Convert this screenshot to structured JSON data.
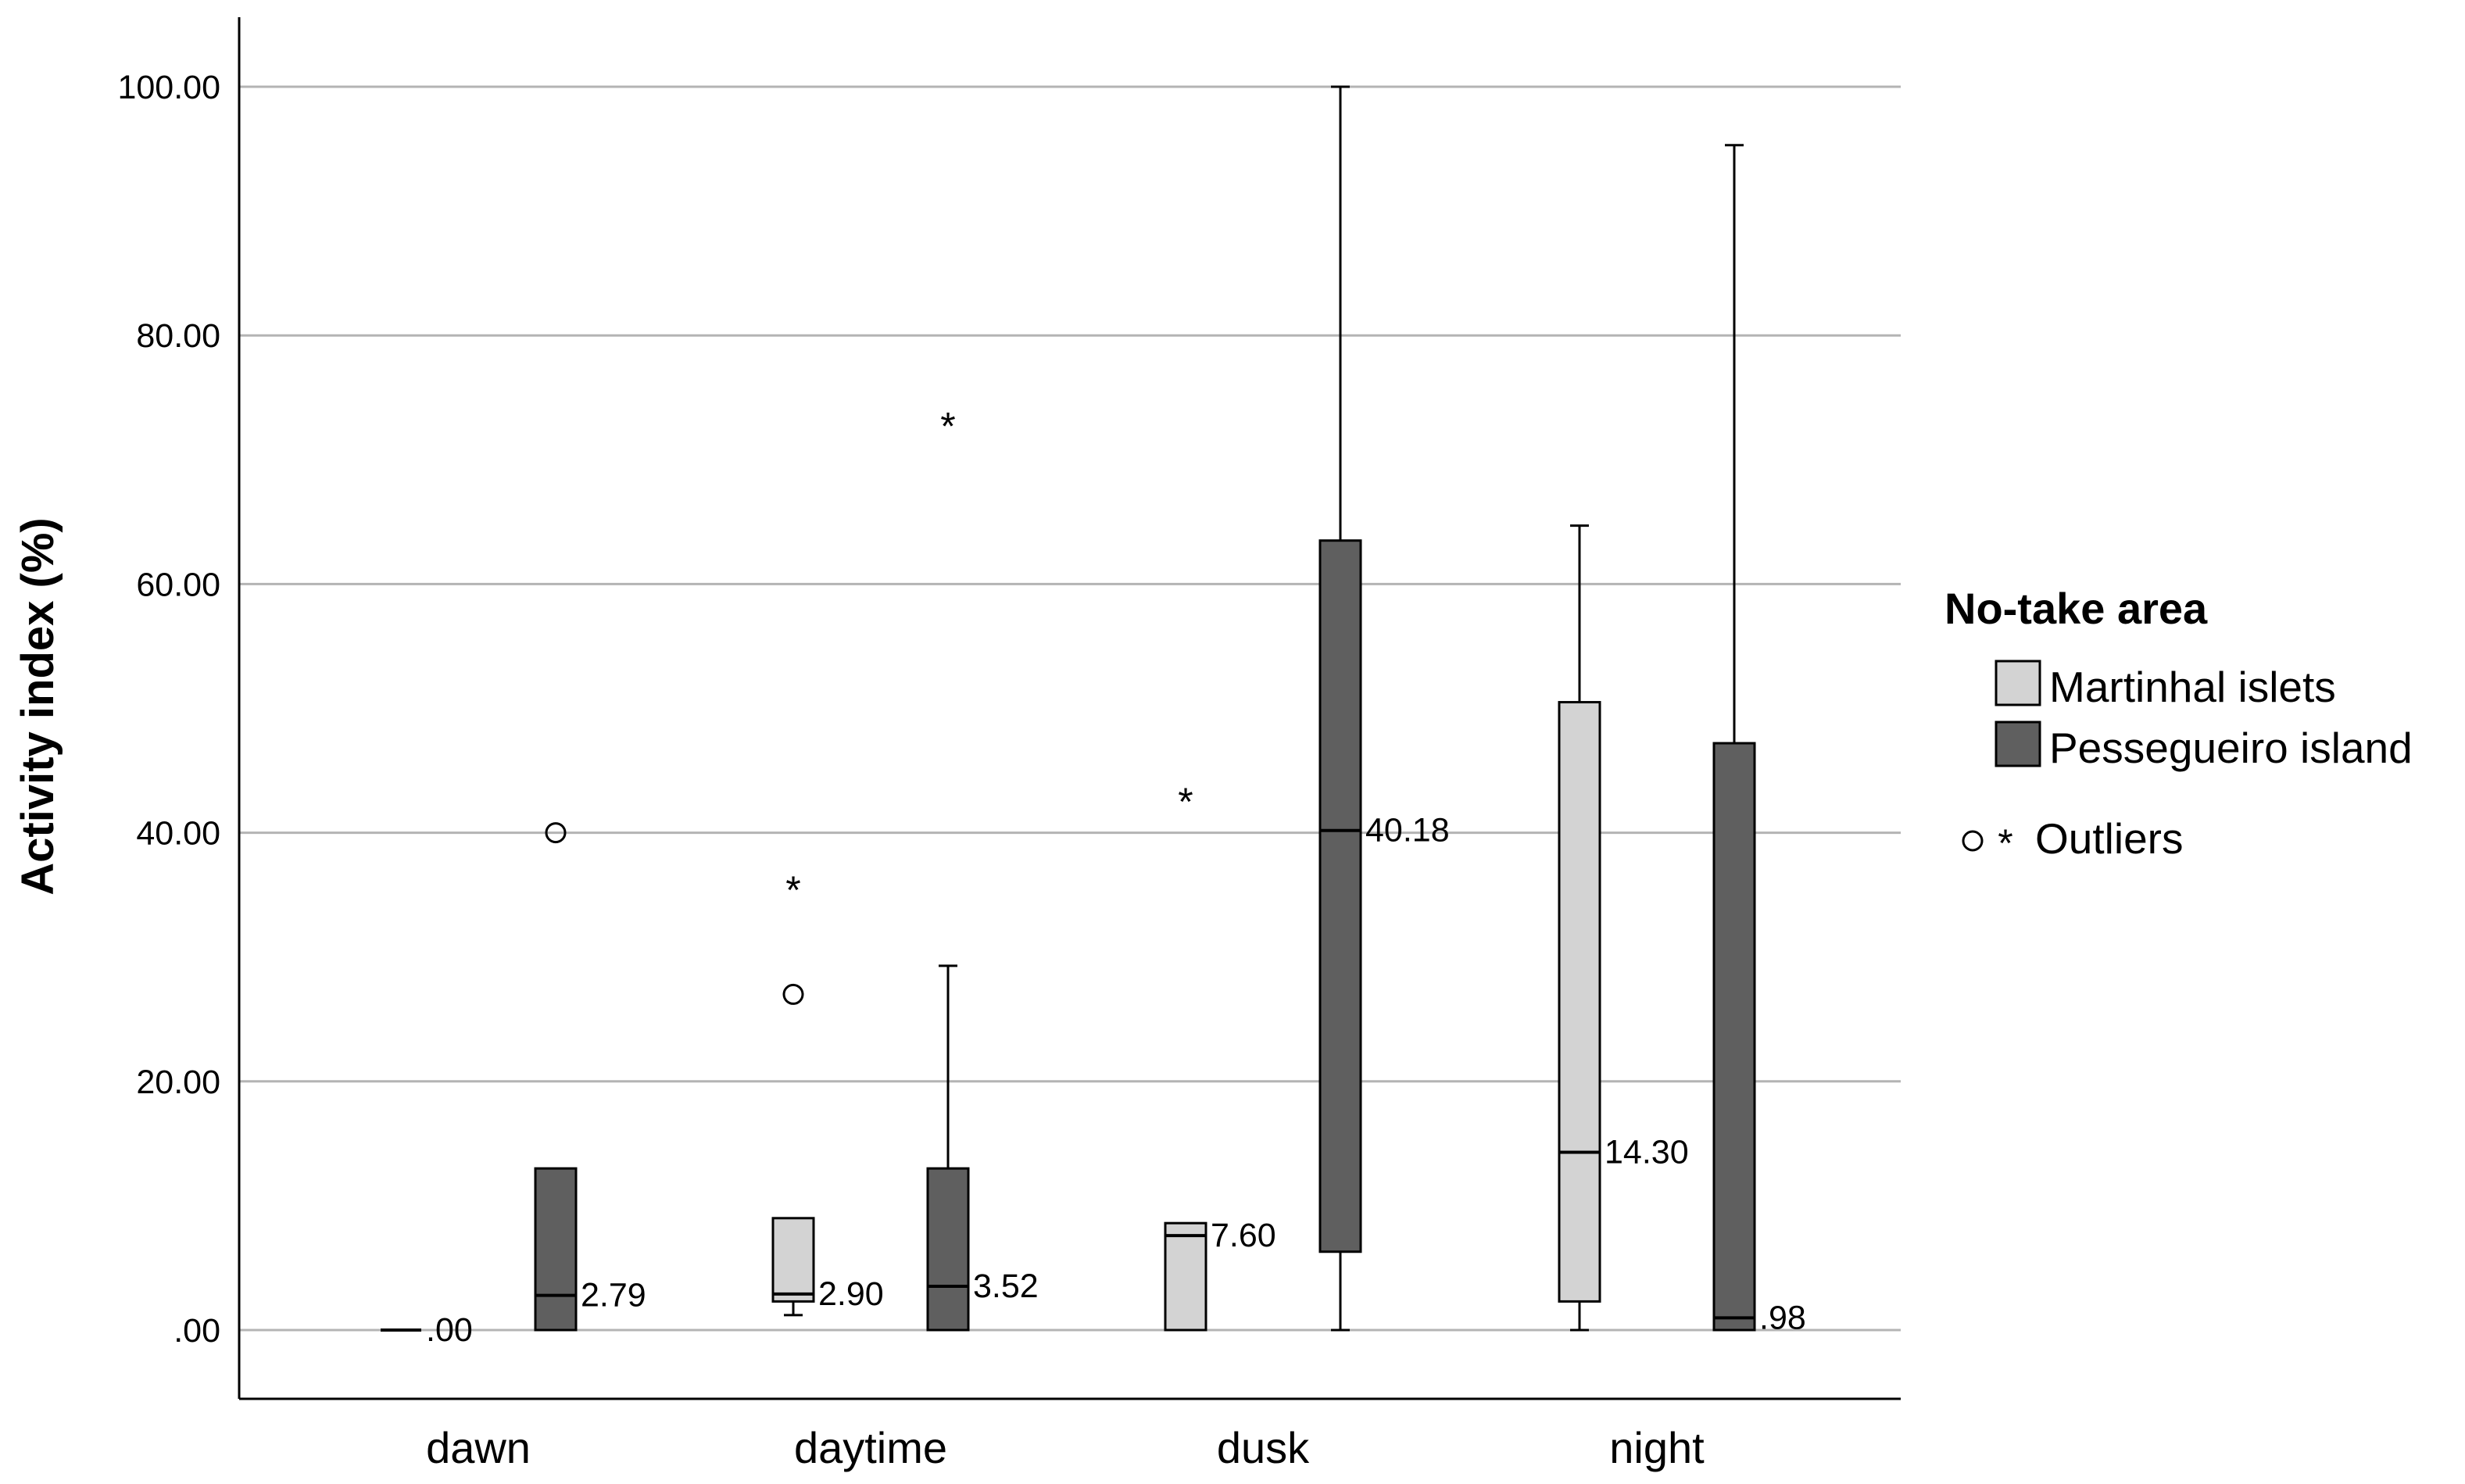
{
  "chart_data": {
    "type": "boxplot",
    "ylabel": "Activity index (%)",
    "ylim": [
      0,
      100
    ],
    "yticks": [
      ".00",
      "20.00",
      "40.00",
      "60.00",
      "80.00",
      "100.00"
    ],
    "ytick_values": [
      0,
      20,
      40,
      60,
      80,
      100
    ],
    "grid": true,
    "categories": [
      "dawn",
      "daytime",
      "dusk",
      "night"
    ],
    "legend": {
      "title": "No-take area",
      "placement": "right",
      "outliers_label": "Outliers"
    },
    "series": [
      {
        "name": "Martinhal islets",
        "color": "#d3d3d3",
        "boxes": [
          {
            "category": "dawn",
            "min": 0,
            "q1": 0,
            "median": 0,
            "q3": 0,
            "max": 0,
            "median_label": ".00",
            "outliers": [],
            "extremes": []
          },
          {
            "category": "daytime",
            "min": 1.2,
            "q1": 2.3,
            "median": 2.9,
            "q3": 9.0,
            "max": 9.0,
            "median_label": "2.90",
            "outliers": [
              27.0
            ],
            "extremes": [
              35.7
            ]
          },
          {
            "category": "dusk",
            "min": 0,
            "q1": 0,
            "median": 7.6,
            "q3": 8.6,
            "max": 8.6,
            "median_label": "7.60",
            "outliers": [],
            "extremes": [
              42.8
            ]
          },
          {
            "category": "night",
            "min": 0,
            "q1": 2.3,
            "median": 14.3,
            "q3": 50.5,
            "max": 64.7,
            "median_label": "14.30",
            "outliers": [],
            "extremes": []
          }
        ]
      },
      {
        "name": "Pessegueiro island",
        "color": "#5f5f5f",
        "boxes": [
          {
            "category": "dawn",
            "min": 0,
            "q1": 0,
            "median": 2.79,
            "q3": 13.0,
            "max": 13.0,
            "median_label": "2.79",
            "outliers": [
              40.0
            ],
            "extremes": []
          },
          {
            "category": "daytime",
            "min": 0,
            "q1": 0,
            "median": 3.52,
            "q3": 13.0,
            "max": 29.3,
            "median_label": "3.52",
            "outliers": [],
            "extremes": [
              73.0
            ]
          },
          {
            "category": "dusk",
            "min": 0,
            "q1": 6.3,
            "median": 40.18,
            "q3": 63.5,
            "max": 100.0,
            "median_label": "40.18",
            "outliers": [],
            "extremes": []
          },
          {
            "category": "night",
            "min": 0,
            "q1": 0,
            "median": 0.98,
            "q3": 47.2,
            "max": 95.3,
            "median_label": ".98",
            "outliers": [],
            "extremes": []
          }
        ]
      }
    ]
  }
}
